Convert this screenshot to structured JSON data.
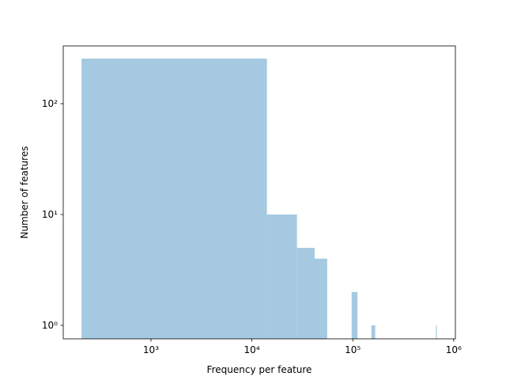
{
  "chart_data": {
    "type": "histogram",
    "xlabel": "Frequency per feature",
    "ylabel": "Number of features",
    "bins": [
      205,
      14095,
      27985,
      41875,
      55765,
      69655,
      83545,
      97435,
      111325,
      125215,
      139105,
      152995,
      166885,
      180775,
      194665,
      208555,
      222445,
      236335,
      250225,
      264115,
      278005,
      291895,
      305785,
      319675,
      333565,
      347455,
      361345,
      375235,
      389125,
      403015,
      416905,
      430795,
      444685,
      458575,
      472465,
      486355,
      500245,
      514135,
      528025,
      541915,
      555805,
      569695,
      583585,
      597475,
      611365,
      625255,
      639145,
      653035,
      666925,
      680815,
      694705
    ],
    "values": [
      255,
      10,
      5,
      4,
      0,
      0,
      0,
      2,
      0,
      0,
      0,
      1,
      0,
      0,
      0,
      0,
      0,
      0,
      0,
      0,
      0,
      0,
      0,
      0,
      0,
      0,
      0,
      0,
      0,
      0,
      0,
      0,
      0,
      0,
      0,
      0,
      0,
      0,
      0,
      0,
      0,
      0,
      0,
      0,
      0,
      0,
      0,
      0,
      1,
      0
    ],
    "color": "#a5c9e1",
    "xscale": "log",
    "yscale": "log",
    "xlim": [
      135,
      1040000
    ],
    "ylim": [
      0.756,
      332
    ],
    "xticks": [
      {
        "value": 1000,
        "label": "10³"
      },
      {
        "value": 10000,
        "label": "10⁴"
      },
      {
        "value": 100000,
        "label": "10⁵"
      },
      {
        "value": 1000000,
        "label": "10⁶"
      }
    ],
    "yticks": [
      {
        "value": 1,
        "label": "10⁰"
      },
      {
        "value": 10,
        "label": "10¹"
      },
      {
        "value": 100,
        "label": "10²"
      }
    ]
  }
}
